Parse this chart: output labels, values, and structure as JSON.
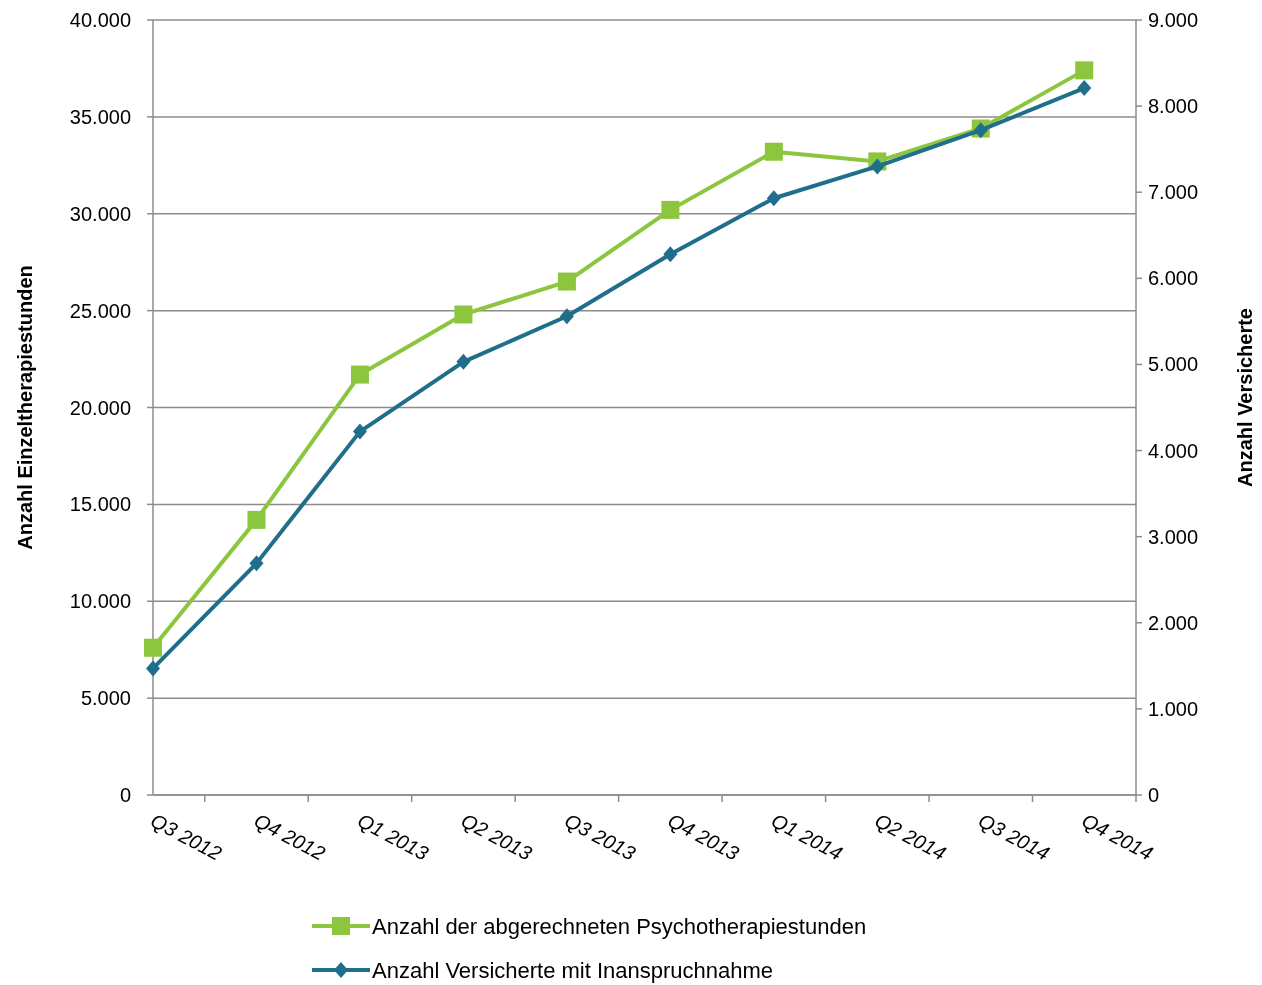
{
  "chart_data": {
    "type": "line",
    "categories": [
      "Q3 2012",
      "Q4 2012",
      "Q1 2013",
      "Q2 2013",
      "Q3 2013",
      "Q4 2013",
      "Q1 2014",
      "Q2 2014",
      "Q3 2014",
      "Q4 2014"
    ],
    "ylabel": "Anzahl Einzeltherapiestunden",
    "y2label": "Anzahl Versicherte",
    "ylim": [
      0,
      40000
    ],
    "yticks": [
      {
        "value": 0,
        "label": "0"
      },
      {
        "value": 5000,
        "label": "5.000"
      },
      {
        "value": 10000,
        "label": "10.000"
      },
      {
        "value": 15000,
        "label": "15.000"
      },
      {
        "value": 20000,
        "label": "20.000"
      },
      {
        "value": 25000,
        "label": "25.000"
      },
      {
        "value": 30000,
        "label": "30.000"
      },
      {
        "value": 35000,
        "label": "35.000"
      },
      {
        "value": 40000,
        "label": "40.000"
      }
    ],
    "y2lim": [
      0,
      9000
    ],
    "y2ticks": [
      {
        "value": 0,
        "label": "0"
      },
      {
        "value": 1000,
        "label": "1.000"
      },
      {
        "value": 2000,
        "label": "2.000"
      },
      {
        "value": 3000,
        "label": "3.000"
      },
      {
        "value": 4000,
        "label": "4.000"
      },
      {
        "value": 5000,
        "label": "5.000"
      },
      {
        "value": 6000,
        "label": "6.000"
      },
      {
        "value": 7000,
        "label": "7.000"
      },
      {
        "value": 8000,
        "label": "8.000"
      },
      {
        "value": 9000,
        "label": "9.000"
      }
    ],
    "grid": "y",
    "legend": "bottom",
    "line_style": "solid",
    "series": [
      {
        "name": "Anzahl der abgerechneten Psychotherapiestunden",
        "color": "#8cc63e",
        "marker": "square",
        "values": [
          7600,
          14200,
          21700,
          24800,
          26500,
          30200,
          33200,
          32700,
          34400,
          37400
        ]
      },
      {
        "name": "Anzahl Versicherte mit Inanspruchnahme",
        "color": "#1f6e8c",
        "marker": "diamond",
        "axis": "y2",
        "values": [
          1470,
          2690,
          4220,
          5030,
          5560,
          6280,
          6930,
          7300,
          7720,
          8210
        ]
      }
    ]
  }
}
